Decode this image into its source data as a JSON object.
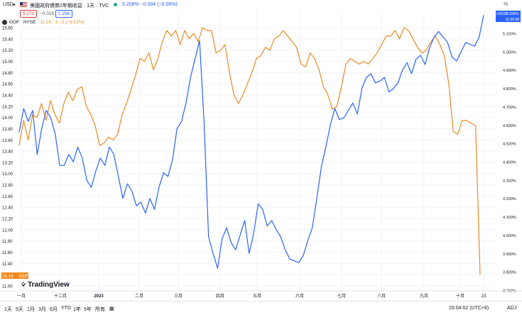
{
  "header": {
    "currency": "USD",
    "symbol_title": "美國政府債券2年期收益 · 1天 · TVC",
    "symbol_values": "5.208%  −0.004  (−0.08%)",
    "price_red": "5.271",
    "price_change": "−0.015",
    "price_blue": "5.256",
    "axis_unit": "%"
  },
  "legend2": {
    "label": "GOF · NYSE",
    "values": "11.16  −1.12  (−9.12%)"
  },
  "badges": {
    "left_price": "11.16",
    "left_ticker": "GOF",
    "right_ticker": "USD2Y",
    "right_price": "5.208%",
    "right_time": "11:55:38"
  },
  "branding": {
    "name": "TradingView"
  },
  "colors": {
    "gof": "#f0891f",
    "us2y": "#2962ff",
    "red": "#e53935",
    "green": "#26a69a"
  },
  "bottombar": {
    "ranges": [
      "1天",
      "5天",
      "1月",
      "3月",
      "6月",
      "YTD",
      "1年",
      "5年",
      "所有"
    ],
    "time": "15:04:02 (UTC+8)",
    "adj": "ADJ"
  },
  "chart_data": {
    "type": "line",
    "x_tick_labels": [
      "一月",
      "十二月",
      "2023",
      "二月",
      "三月",
      "四月",
      "五月",
      "六月",
      "七月",
      "八月",
      "九月",
      "十月",
      "23"
    ],
    "left_axis": {
      "ticks": [
        "15.60",
        "15.40",
        "15.20",
        "15.00",
        "14.80",
        "14.60",
        "14.40",
        "14.20",
        "14.00",
        "13.80",
        "13.60",
        "13.40",
        "13.20",
        "13.00",
        "12.80",
        "12.60",
        "12.40",
        "12.20",
        "12.00",
        "11.80",
        "11.60",
        "11.40",
        "11.20",
        "11.00"
      ],
      "ylim": [
        11.0,
        15.6
      ]
    },
    "right_axis": {
      "ticks": [
        "5.100%",
        "5.000%",
        "4.900%",
        "4.800%",
        "4.700%",
        "4.600%",
        "4.500%",
        "4.400%",
        "4.300%",
        "4.200%",
        "4.100%",
        "4.000%",
        "3.900%",
        "3.800%",
        "3.700%"
      ],
      "ylim": [
        3.7,
        5.15
      ]
    },
    "series": [
      {
        "name": "GOF",
        "axis": "left",
        "values": [
          13.5,
          13.95,
          13.6,
          14.05,
          14.0,
          14.25,
          13.95,
          14.3,
          14.05,
          13.9,
          14.25,
          14.45,
          14.3,
          14.5,
          14.55,
          14.2,
          14.05,
          13.85,
          13.5,
          13.55,
          13.65,
          13.6,
          13.7,
          14.05,
          14.25,
          14.5,
          14.75,
          15.05,
          15.0,
          15.15,
          14.85,
          15.05,
          15.35,
          15.55,
          15.45,
          15.55,
          15.3,
          15.55,
          15.4,
          15.5,
          15.35,
          15.6,
          15.55,
          15.55,
          15.15,
          15.2,
          15.3,
          14.8,
          14.4,
          14.25,
          14.4,
          14.6,
          14.8,
          15.05,
          15.1,
          15.25,
          15.2,
          15.4,
          15.45,
          15.55,
          15.45,
          15.35,
          15.25,
          14.95,
          14.9,
          15.15,
          15.05,
          14.85,
          14.55,
          14.4,
          14.15,
          14.2,
          14.55,
          14.95,
          15.05,
          15.0,
          14.95,
          15.0,
          14.95,
          15.05,
          15.15,
          15.3,
          15.45,
          15.45,
          15.55,
          15.4,
          15.6,
          15.55,
          15.4,
          15.25,
          15.15,
          15.2,
          15.35,
          15.45,
          15.3,
          15.1,
          14.6,
          13.75,
          13.7,
          13.95,
          13.95,
          13.9,
          13.85,
          11.2
        ]
      },
      {
        "name": "USD2Y",
        "axis": "right",
        "values": [
          4.56,
          4.69,
          4.62,
          4.68,
          4.44,
          4.58,
          4.68,
          4.64,
          4.55,
          4.38,
          4.38,
          4.44,
          4.4,
          4.48,
          4.42,
          4.3,
          4.26,
          4.35,
          4.42,
          4.38,
          4.48,
          4.44,
          4.32,
          4.2,
          4.28,
          4.24,
          4.16,
          4.18,
          4.12,
          4.2,
          4.14,
          4.26,
          4.34,
          4.32,
          4.41,
          4.58,
          4.62,
          4.72,
          4.86,
          4.96,
          5.06,
          4.62,
          3.99,
          3.9,
          3.82,
          3.98,
          4.04,
          3.96,
          3.92,
          4.0,
          4.08,
          3.9,
          4.01,
          4.17,
          4.14,
          4.05,
          4.08,
          4.03,
          3.99,
          3.92,
          3.87,
          3.86,
          3.85,
          3.89,
          3.97,
          4.04,
          4.2,
          4.37,
          4.48,
          4.6,
          4.69,
          4.63,
          4.64,
          4.68,
          4.72,
          4.66,
          4.8,
          4.86,
          4.88,
          4.83,
          4.84,
          4.86,
          4.78,
          4.8,
          4.83,
          4.9,
          4.94,
          4.88,
          4.96,
          4.98,
          4.93,
          5.02,
          5.08,
          5.11,
          5.08,
          5.05,
          4.97,
          4.95,
          5.0,
          5.05,
          5.04,
          5.03,
          5.08,
          5.2
        ]
      }
    ]
  }
}
